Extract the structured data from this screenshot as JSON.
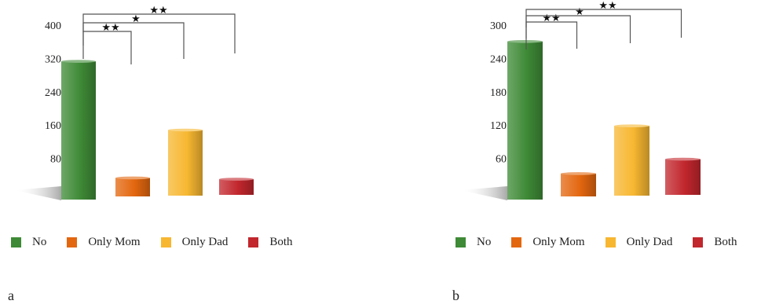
{
  "chart_data": [
    {
      "panel_label": "a",
      "type": "bar",
      "categories": [
        "No",
        "Only Mom",
        "Only Dad",
        "Both"
      ],
      "values": [
        315,
        35,
        150,
        32
      ],
      "yticks": [
        80,
        160,
        240,
        320,
        400
      ],
      "ylim": [
        0,
        400
      ],
      "significance": [
        {
          "from": "No",
          "to": "Only Mom",
          "label": "★★"
        },
        {
          "from": "No",
          "to": "Only Dad",
          "label": "★"
        },
        {
          "from": "No",
          "to": "Both",
          "label": "★★"
        }
      ],
      "legend_position": "bottom"
    },
    {
      "panel_label": "b",
      "type": "bar",
      "categories": [
        "No",
        "Only Mom",
        "Only Dad",
        "Both"
      ],
      "values": [
        272,
        34,
        120,
        60
      ],
      "yticks": [
        60,
        120,
        180,
        240,
        300
      ],
      "ylim": [
        0,
        300
      ],
      "significance": [
        {
          "from": "No",
          "to": "Only Mom",
          "label": "★★"
        },
        {
          "from": "No",
          "to": "Only Dad",
          "label": "★"
        },
        {
          "from": "No",
          "to": "Both",
          "label": "★★"
        }
      ],
      "legend_position": "bottom"
    }
  ],
  "colors": {
    "No": "#3e8a36",
    "Only Mom": "#e3670f",
    "Only Dad": "#f7b731",
    "Both": "#c1272d"
  }
}
